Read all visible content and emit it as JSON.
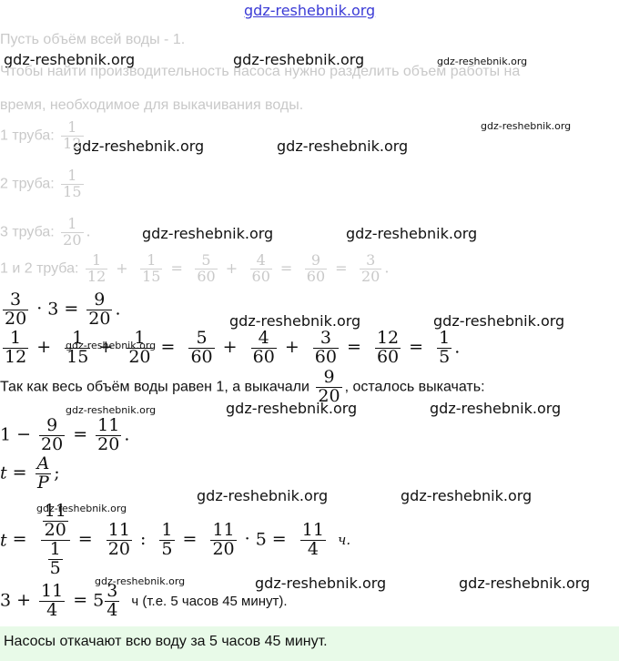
{
  "watermark": "gdz-reshebnik.org",
  "header_link": "gdz-reshebnik.org",
  "p1": "Пусть объём всей воды - 1.",
  "p2a": "Чтобы найти производительность насоса нужно разделить объем работы на",
  "p2b": "время, необходимое для выкачивания воды.",
  "pipe1_label": "1 труба:",
  "pipe2_label": "2 труба:",
  "pipe3_label": "3 труба:",
  "pipe12_label": "1 и 2 труба:",
  "text_total": "Так как весь объём воды равен 1, а выкачали",
  "text_remain": ", осталось выкачать:",
  "time_note": "ч (т.е. 5 часов 45 минут).",
  "unit_h": "ч.",
  "unit_h2": "ч",
  "answer": "Насосы откачают всю воду за 5 часов 45 минут.",
  "math": {
    "one": "1",
    "three": "3",
    "four": "4",
    "five": "5",
    "nine": "9",
    "eleven": "11",
    "twelve": "12",
    "fifteen": "15",
    "twenty": "20",
    "sixty": "60",
    "A": "A",
    "P": "P",
    "t": "t"
  }
}
